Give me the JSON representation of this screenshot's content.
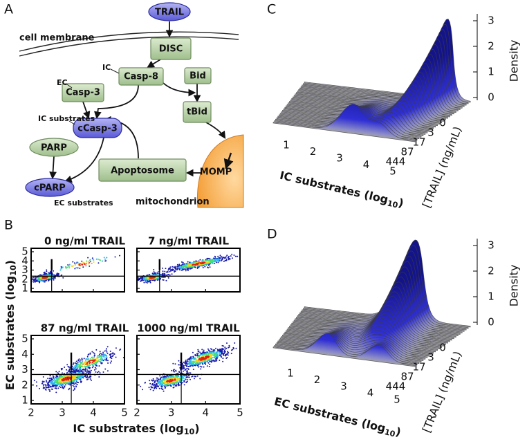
{
  "diagram": {
    "label": "A",
    "nodes": [
      {
        "label": "TRAIL"
      },
      {
        "label": "DISC"
      },
      {
        "label": "Casp-8"
      },
      {
        "label": "Bid"
      },
      {
        "label": "Casp-3"
      },
      {
        "label": "tBid"
      },
      {
        "label": "cCasp-3"
      },
      {
        "label": "PARP"
      },
      {
        "label": "cPARP"
      },
      {
        "label": "Apoptosome"
      },
      {
        "label": "MOMP"
      }
    ],
    "annotations": [
      "cell membrane",
      "IC",
      "EC",
      "IC substrates",
      "EC substrates",
      "mitochondrion"
    ]
  },
  "scatter": {
    "label": "B",
    "plots": [
      {
        "title": "0 ng/ml TRAIL"
      },
      {
        "title": "7 ng/ml TRAIL"
      },
      {
        "title": "87 ng/ml TRAIL"
      },
      {
        "title": "1000 ng/ml TRAIL"
      }
    ],
    "xlim": [
      2,
      5
    ],
    "ylim": [
      1,
      5
    ],
    "xticks": [
      2,
      3,
      4,
      5
    ],
    "yticks": [
      1,
      2,
      3,
      4,
      5
    ],
    "xlabel": [
      "IC substrates (log",
      "10",
      ")"
    ],
    "ylabel": [
      "EC substrates (log",
      "10",
      ")"
    ]
  },
  "ridges": [
    {
      "label": "C",
      "xlabel": [
        "IC substrates (log",
        "10",
        ")"
      ],
      "xticks": [
        1,
        2,
        3,
        4,
        5
      ],
      "zlabel": "Density",
      "zticks": [
        0,
        1,
        2,
        3
      ],
      "ylabel": "[TRAIL] (ng/mL)",
      "yticks": [
        0,
        3,
        17,
        87,
        444
      ]
    },
    {
      "label": "D",
      "xlabel": [
        "EC substrates (log",
        "10",
        ")"
      ],
      "xticks": [
        1,
        2,
        3,
        4,
        5
      ],
      "zlabel": "Density",
      "zticks": [
        0,
        1,
        2,
        3
      ],
      "ylabel": "[TRAIL] (ng/mL)",
      "yticks": [
        0,
        3,
        17,
        87,
        444
      ]
    }
  ]
}
